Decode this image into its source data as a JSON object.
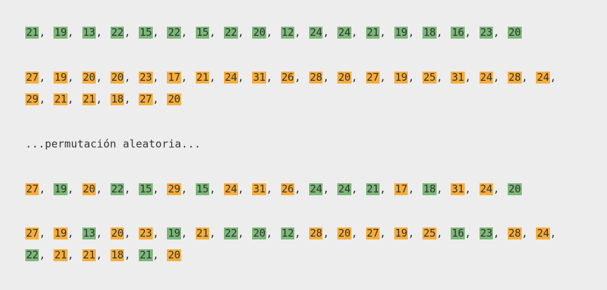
{
  "colors": {
    "green": "#7cb87a",
    "orange": "#f8ae3c",
    "background": "#ededed",
    "text": "#333333"
  },
  "separator": ",",
  "blocks": [
    {
      "name": "sequence-a-original",
      "items": [
        {
          "v": "21",
          "c": "green"
        },
        {
          "v": "19",
          "c": "green"
        },
        {
          "v": "13",
          "c": "green"
        },
        {
          "v": "22",
          "c": "green"
        },
        {
          "v": "15",
          "c": "green"
        },
        {
          "v": "22",
          "c": "green"
        },
        {
          "v": "15",
          "c": "green"
        },
        {
          "v": "22",
          "c": "green"
        },
        {
          "v": "20",
          "c": "green"
        },
        {
          "v": "12",
          "c": "green"
        },
        {
          "v": "24",
          "c": "green"
        },
        {
          "v": "24",
          "c": "green"
        },
        {
          "v": "21",
          "c": "green"
        },
        {
          "v": "19",
          "c": "green"
        },
        {
          "v": "18",
          "c": "green"
        },
        {
          "v": "16",
          "c": "green"
        },
        {
          "v": "23",
          "c": "green"
        },
        {
          "v": "20",
          "c": "green"
        }
      ]
    },
    {
      "name": "sequence-b-original",
      "items": [
        {
          "v": "27",
          "c": "orange"
        },
        {
          "v": "19",
          "c": "orange"
        },
        {
          "v": "20",
          "c": "orange"
        },
        {
          "v": "20",
          "c": "orange"
        },
        {
          "v": "23",
          "c": "orange"
        },
        {
          "v": "17",
          "c": "orange"
        },
        {
          "v": "21",
          "c": "orange"
        },
        {
          "v": "24",
          "c": "orange"
        },
        {
          "v": "31",
          "c": "orange"
        },
        {
          "v": "26",
          "c": "orange"
        },
        {
          "v": "28",
          "c": "orange"
        },
        {
          "v": "20",
          "c": "orange"
        },
        {
          "v": "27",
          "c": "orange"
        },
        {
          "v": "19",
          "c": "orange"
        },
        {
          "v": "25",
          "c": "orange"
        },
        {
          "v": "31",
          "c": "orange"
        },
        {
          "v": "24",
          "c": "orange"
        },
        {
          "v": "28",
          "c": "orange"
        },
        {
          "v": "24",
          "c": "orange"
        },
        {
          "v": "29",
          "c": "orange"
        },
        {
          "v": "21",
          "c": "orange"
        },
        {
          "v": "21",
          "c": "orange"
        },
        {
          "v": "18",
          "c": "orange"
        },
        {
          "v": "27",
          "c": "orange"
        },
        {
          "v": "20",
          "c": "orange"
        }
      ]
    },
    {
      "name": "sequence-a-permuted",
      "items": [
        {
          "v": "27",
          "c": "orange"
        },
        {
          "v": "19",
          "c": "green"
        },
        {
          "v": "20",
          "c": "orange"
        },
        {
          "v": "22",
          "c": "green"
        },
        {
          "v": "15",
          "c": "green"
        },
        {
          "v": "29",
          "c": "orange"
        },
        {
          "v": "15",
          "c": "green"
        },
        {
          "v": "24",
          "c": "orange"
        },
        {
          "v": "31",
          "c": "orange"
        },
        {
          "v": "26",
          "c": "orange"
        },
        {
          "v": "24",
          "c": "green"
        },
        {
          "v": "24",
          "c": "green"
        },
        {
          "v": "21",
          "c": "green"
        },
        {
          "v": "17",
          "c": "orange"
        },
        {
          "v": "18",
          "c": "green"
        },
        {
          "v": "31",
          "c": "orange"
        },
        {
          "v": "24",
          "c": "orange"
        },
        {
          "v": "20",
          "c": "green"
        }
      ]
    },
    {
      "name": "sequence-b-permuted",
      "items": [
        {
          "v": "27",
          "c": "orange"
        },
        {
          "v": "19",
          "c": "orange"
        },
        {
          "v": "13",
          "c": "green"
        },
        {
          "v": "20",
          "c": "orange"
        },
        {
          "v": "23",
          "c": "orange"
        },
        {
          "v": "19",
          "c": "green"
        },
        {
          "v": "21",
          "c": "orange"
        },
        {
          "v": "22",
          "c": "green"
        },
        {
          "v": "20",
          "c": "green"
        },
        {
          "v": "12",
          "c": "green"
        },
        {
          "v": "28",
          "c": "orange"
        },
        {
          "v": "20",
          "c": "orange"
        },
        {
          "v": "27",
          "c": "orange"
        },
        {
          "v": "19",
          "c": "orange"
        },
        {
          "v": "25",
          "c": "orange"
        },
        {
          "v": "16",
          "c": "green"
        },
        {
          "v": "23",
          "c": "green"
        },
        {
          "v": "28",
          "c": "orange"
        },
        {
          "v": "24",
          "c": "orange"
        },
        {
          "v": "22",
          "c": "green"
        },
        {
          "v": "21",
          "c": "orange"
        },
        {
          "v": "21",
          "c": "orange"
        },
        {
          "v": "18",
          "c": "orange"
        },
        {
          "v": "21",
          "c": "green"
        },
        {
          "v": "20",
          "c": "orange"
        }
      ]
    }
  ],
  "note": "...permutación aleatoria..."
}
